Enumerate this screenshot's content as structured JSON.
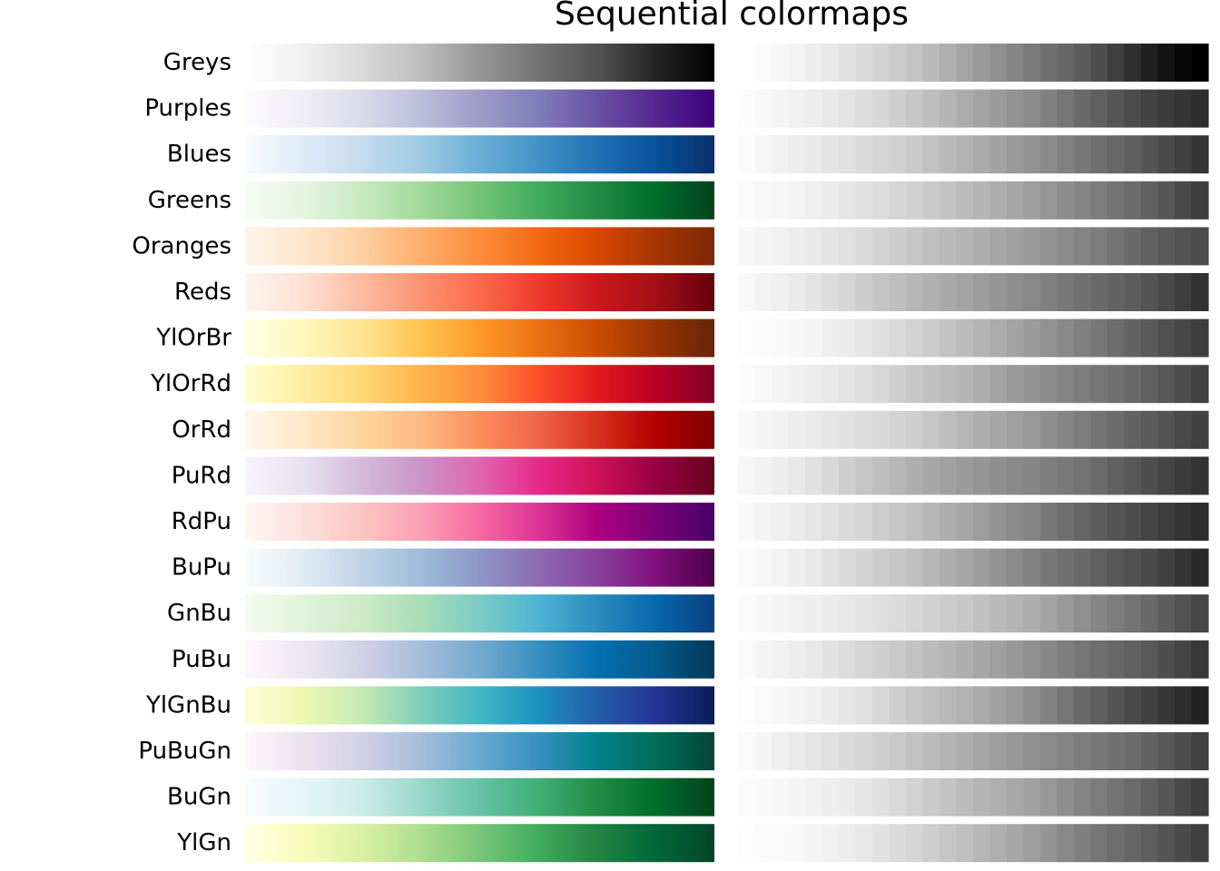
{
  "chart_data": {
    "type": "heatmap",
    "title": "Sequential colormaps",
    "subtitle": "",
    "xlabel": "",
    "ylabel": "",
    "grid": false,
    "panels": [
      "colormap",
      "lightness"
    ],
    "colormaps": [
      {
        "name": "Greys",
        "colors": [
          "#ffffff",
          "#f0f0f0",
          "#d9d9d9",
          "#bdbdbd",
          "#969696",
          "#737373",
          "#525252",
          "#252525",
          "#000000"
        ]
      },
      {
        "name": "Purples",
        "colors": [
          "#fcfbfd",
          "#efedf5",
          "#dadaeb",
          "#bcbddc",
          "#9e9ac8",
          "#807dba",
          "#6a51a3",
          "#54278f",
          "#3f007d"
        ]
      },
      {
        "name": "Blues",
        "colors": [
          "#f7fbff",
          "#deebf7",
          "#c6dbef",
          "#9ecae1",
          "#6baed6",
          "#4292c6",
          "#2171b5",
          "#08519c",
          "#08306b"
        ]
      },
      {
        "name": "Greens",
        "colors": [
          "#f7fcf5",
          "#e5f5e0",
          "#c7e9c0",
          "#a1d99b",
          "#74c476",
          "#41ab5d",
          "#238b45",
          "#006d2c",
          "#00441b"
        ]
      },
      {
        "name": "Oranges",
        "colors": [
          "#fff5eb",
          "#fee6ce",
          "#fdd0a2",
          "#fdae6b",
          "#fd8d3c",
          "#f16913",
          "#d94801",
          "#a63603",
          "#7f2704"
        ]
      },
      {
        "name": "Reds",
        "colors": [
          "#fff5f0",
          "#fee0d2",
          "#fcbba1",
          "#fc9272",
          "#fb6a4a",
          "#ef3b2c",
          "#cb181d",
          "#a50f15",
          "#67000d"
        ]
      },
      {
        "name": "YlOrBr",
        "colors": [
          "#ffffe5",
          "#fff7bc",
          "#fee391",
          "#fec44f",
          "#fe9929",
          "#ec7014",
          "#cc4c02",
          "#993404",
          "#662506"
        ]
      },
      {
        "name": "YlOrRd",
        "colors": [
          "#ffffcc",
          "#ffeda0",
          "#fed976",
          "#feb24c",
          "#fd8d3c",
          "#fc4e2a",
          "#e31a1c",
          "#bd0026",
          "#800026"
        ]
      },
      {
        "name": "OrRd",
        "colors": [
          "#fff7ec",
          "#fee8c8",
          "#fdd49e",
          "#fdbb84",
          "#fc8d59",
          "#ef6548",
          "#d7301f",
          "#b30000",
          "#7f0000"
        ]
      },
      {
        "name": "PuRd",
        "colors": [
          "#f7f4f9",
          "#e7e1ef",
          "#d4b9da",
          "#c994c7",
          "#df65b0",
          "#e7298a",
          "#ce1256",
          "#980043",
          "#67001f"
        ]
      },
      {
        "name": "RdPu",
        "colors": [
          "#fff7f3",
          "#fde0dd",
          "#fcc5c0",
          "#fa9fb5",
          "#f768a1",
          "#dd3497",
          "#ae017e",
          "#7a0177",
          "#49006a"
        ]
      },
      {
        "name": "BuPu",
        "colors": [
          "#f7fcfd",
          "#e0ecf4",
          "#bfd3e6",
          "#9ebcda",
          "#8c96c6",
          "#8c6bb1",
          "#88419d",
          "#810f7c",
          "#4d004b"
        ]
      },
      {
        "name": "GnBu",
        "colors": [
          "#f7fcf0",
          "#e0f3db",
          "#ccebc5",
          "#a8ddb5",
          "#7bccc4",
          "#4eb3d3",
          "#2b8cbe",
          "#0868ac",
          "#084081"
        ]
      },
      {
        "name": "PuBu",
        "colors": [
          "#fff7fb",
          "#ece7f2",
          "#d0d1e6",
          "#a6bddb",
          "#74a9cf",
          "#3690c0",
          "#0570b0",
          "#045a8d",
          "#023858"
        ]
      },
      {
        "name": "YlGnBu",
        "colors": [
          "#ffffd9",
          "#edf8b1",
          "#c7e9b4",
          "#7fcdbb",
          "#41b6c4",
          "#1d91c0",
          "#225ea8",
          "#253494",
          "#081d58"
        ]
      },
      {
        "name": "PuBuGn",
        "colors": [
          "#fff7fb",
          "#ece2f0",
          "#d0d1e6",
          "#a6bddb",
          "#67a9cf",
          "#3690c0",
          "#02818a",
          "#016c59",
          "#014636"
        ]
      },
      {
        "name": "BuGn",
        "colors": [
          "#f7fcfd",
          "#e5f5f9",
          "#ccece6",
          "#99d8c9",
          "#66c2a4",
          "#41ae76",
          "#238b45",
          "#006d2c",
          "#00441b"
        ]
      },
      {
        "name": "YlGn",
        "colors": [
          "#ffffe5",
          "#f7fcb9",
          "#d9f0a3",
          "#addd8e",
          "#78c679",
          "#41ab5d",
          "#238443",
          "#006837",
          "#004529"
        ]
      }
    ]
  }
}
